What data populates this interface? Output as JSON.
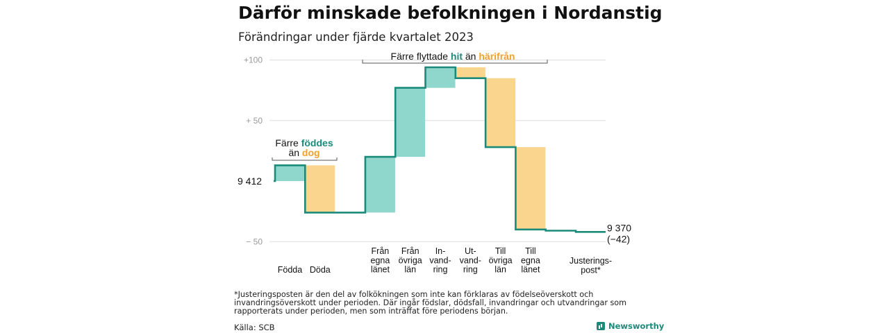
{
  "title": "Därför minskade befolkningen i Nordanstig",
  "subtitle": "Förändringar under fjärde kvartalet 2023",
  "footnote": "*Justeringsposten är den del av folkökningen som inte kan förklaras av födelseöverskott och invandringsöverskott under perioden. Där ingår födslar, dödsfall, invandringar och utvandringar som rapporterats under perioden, men som inträffat före periodens början.",
  "source": "Källa: SCB",
  "brand": "Newsworthy",
  "colors": {
    "increase": "#8fd6cc",
    "decrease": "#fad58e",
    "line": "#1a8a7a",
    "accent_teal": "#1a8a7a",
    "accent_orange": "#f2a02a",
    "grid": "#dddddd"
  },
  "annotations": {
    "birth": {
      "line1": "Färre",
      "hl1": "föddes",
      "line2": "än",
      "hl2": "dog"
    },
    "migration": {
      "pre": "Färre flyttade",
      "hl1": "hit",
      "mid": "än",
      "hl2": "härifrån"
    }
  },
  "chart_data": {
    "type": "waterfall",
    "start_value": 9412,
    "start_label": "9 412",
    "end_value": 9370,
    "end_label": "9 370",
    "end_change_label": "(−42)",
    "ylim": [
      -50,
      100
    ],
    "yticks": [
      {
        "value": 100,
        "label": "+100"
      },
      {
        "value": 50,
        "label": "+  50"
      },
      {
        "value": 0,
        "label": ""
      },
      {
        "value": -50,
        "label": "−  50"
      }
    ],
    "categories": [
      {
        "label": [
          "Födda"
        ],
        "value": 13
      },
      {
        "label": [
          "Döda"
        ],
        "value": -39
      },
      {
        "label": [],
        "value": 0
      },
      {
        "label": [
          "Från",
          "egna",
          "länet"
        ],
        "value": 46
      },
      {
        "label": [
          "Från",
          "övriga",
          "län"
        ],
        "value": 57
      },
      {
        "label": [
          "In-",
          "vand-",
          "ring"
        ],
        "value": 17
      },
      {
        "label": [
          "Ut-",
          "vand-",
          "ring"
        ],
        "value": -9
      },
      {
        "label": [
          "Till",
          "övriga",
          "län"
        ],
        "value": -57
      },
      {
        "label": [
          "Till",
          "egna",
          "länet"
        ],
        "value": -68
      },
      {
        "label": [],
        "value": -1
      },
      {
        "label": [
          "Justerings-",
          "post*"
        ],
        "value": -1
      }
    ]
  }
}
